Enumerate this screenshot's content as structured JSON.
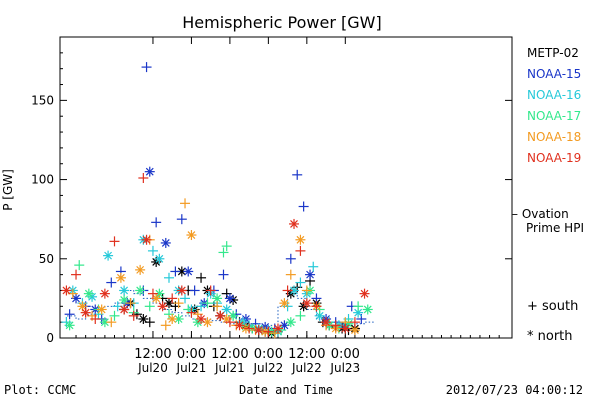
{
  "chart_data": {
    "type": "scatter",
    "title": "Hemispheric Power [GW]",
    "ylabel": "P [GW]",
    "xlabel": "Date and Time",
    "ylim": [
      0,
      190
    ],
    "yticks": [
      0,
      50,
      100,
      150
    ],
    "xlim_hours": [
      -17,
      124
    ],
    "xticks": [
      {
        "pos_hours": 12,
        "time": "12:00",
        "date": "Jul20"
      },
      {
        "pos_hours": 24,
        "time": "0:00",
        "date": "Jul21"
      },
      {
        "pos_hours": 36,
        "time": "12:00",
        "date": "Jul21"
      },
      {
        "pos_hours": 48,
        "time": "0:00",
        "date": "Jul22"
      },
      {
        "pos_hours": 60,
        "time": "12:00",
        "date": "Jul22"
      },
      {
        "pos_hours": 72,
        "time": "0:00",
        "date": "Jul23"
      }
    ],
    "plot_credit": "Plot: CCMC",
    "timestamp": "2012/07/23 04:00:12",
    "ovation_label": [
      "– Ovation",
      "Prime HPI"
    ],
    "ovation_color": "#1f5fbf",
    "marker_legend": [
      {
        "symbol": "+",
        "label": "south"
      },
      {
        "symbol": "*",
        "label": "north"
      }
    ],
    "series": [
      {
        "name": "METP-02",
        "color": "#000000",
        "points": [
          [
            3,
            18,
            "+"
          ],
          [
            5,
            22,
            "*"
          ],
          [
            7,
            15,
            "+"
          ],
          [
            9,
            12,
            "*"
          ],
          [
            11,
            10,
            "+"
          ],
          [
            13,
            48,
            "*"
          ],
          [
            15,
            25,
            "+"
          ],
          [
            17,
            22,
            "*"
          ],
          [
            19,
            20,
            "+"
          ],
          [
            21,
            42,
            "*"
          ],
          [
            23,
            30,
            "+"
          ],
          [
            25,
            18,
            "*"
          ],
          [
            27,
            38,
            "+"
          ],
          [
            29,
            30,
            "*"
          ],
          [
            31,
            20,
            "+"
          ],
          [
            33,
            14,
            "*"
          ],
          [
            35,
            28,
            "+"
          ],
          [
            37,
            24,
            "*"
          ],
          [
            39,
            10,
            "+"
          ],
          [
            41,
            8,
            "*"
          ],
          [
            43,
            6,
            "+"
          ],
          [
            45,
            5,
            "*"
          ],
          [
            47,
            4,
            "+"
          ],
          [
            49,
            3,
            "*"
          ],
          [
            51,
            4,
            "+"
          ],
          [
            55,
            28,
            "*"
          ],
          [
            57,
            32,
            "+"
          ],
          [
            59,
            20,
            "*"
          ],
          [
            61,
            36,
            "+"
          ],
          [
            63,
            22,
            "*"
          ],
          [
            65,
            10,
            "+"
          ],
          [
            67,
            8,
            "*"
          ],
          [
            69,
            7,
            "+"
          ],
          [
            71,
            6,
            "*"
          ],
          [
            73,
            5,
            "+"
          ],
          [
            75,
            6,
            "*"
          ]
        ]
      },
      {
        "name": "NOAA-15",
        "color": "#1a36c8",
        "points": [
          [
            -14,
            15,
            "+"
          ],
          [
            -12,
            25,
            "*"
          ],
          [
            -9,
            20,
            "+"
          ],
          [
            -6,
            18,
            "*"
          ],
          [
            -4,
            12,
            "+"
          ],
          [
            -1,
            35,
            "+"
          ],
          [
            2,
            42,
            "+"
          ],
          [
            4,
            22,
            "*"
          ],
          [
            9,
            30,
            "+"
          ],
          [
            10,
            171,
            "+"
          ],
          [
            11,
            105,
            "*"
          ],
          [
            13,
            73,
            "+"
          ],
          [
            16,
            60,
            "*"
          ],
          [
            19,
            42,
            "+"
          ],
          [
            21,
            75,
            "+"
          ],
          [
            23,
            42,
            "*"
          ],
          [
            25,
            30,
            "+"
          ],
          [
            28,
            22,
            "*"
          ],
          [
            31,
            30,
            "+"
          ],
          [
            34,
            40,
            "+"
          ],
          [
            36,
            25,
            "*"
          ],
          [
            38,
            15,
            "+"
          ],
          [
            41,
            12,
            "*"
          ],
          [
            44,
            9,
            "+"
          ],
          [
            47,
            7,
            "*"
          ],
          [
            50,
            6,
            "+"
          ],
          [
            53,
            8,
            "*"
          ],
          [
            55,
            50,
            "+"
          ],
          [
            57,
            103,
            "+"
          ],
          [
            59,
            83,
            "+"
          ],
          [
            61,
            40,
            "*"
          ],
          [
            63,
            25,
            "+"
          ],
          [
            66,
            12,
            "*"
          ],
          [
            69,
            10,
            "+"
          ],
          [
            72,
            8,
            "*"
          ],
          [
            74,
            20,
            "+"
          ],
          [
            77,
            12,
            "+"
          ]
        ]
      },
      {
        "name": "NOAA-16",
        "color": "#26c9d9",
        "points": [
          [
            -15,
            10,
            "+"
          ],
          [
            -13,
            30,
            "*"
          ],
          [
            -10,
            22,
            "+"
          ],
          [
            -7,
            26,
            "*"
          ],
          [
            -5,
            15,
            "+"
          ],
          [
            -2,
            52,
            "*"
          ],
          [
            1,
            20,
            "+"
          ],
          [
            3,
            30,
            "*"
          ],
          [
            6,
            22,
            "+"
          ],
          [
            9,
            62,
            "*"
          ],
          [
            12,
            55,
            "+"
          ],
          [
            14,
            50,
            "*"
          ],
          [
            17,
            38,
            "+"
          ],
          [
            20,
            30,
            "*"
          ],
          [
            22,
            25,
            "+"
          ],
          [
            24,
            18,
            "*"
          ],
          [
            27,
            20,
            "+"
          ],
          [
            30,
            28,
            "*"
          ],
          [
            32,
            22,
            "+"
          ],
          [
            35,
            18,
            "*"
          ],
          [
            37,
            14,
            "+"
          ],
          [
            40,
            10,
            "*"
          ],
          [
            42,
            8,
            "+"
          ],
          [
            45,
            6,
            "*"
          ],
          [
            48,
            5,
            "+"
          ],
          [
            51,
            4,
            "*"
          ],
          [
            54,
            20,
            "+"
          ],
          [
            56,
            30,
            "*"
          ],
          [
            58,
            35,
            "+"
          ],
          [
            60,
            28,
            "*"
          ],
          [
            62,
            45,
            "+"
          ],
          [
            64,
            14,
            "*"
          ],
          [
            67,
            10,
            "+"
          ],
          [
            70,
            8,
            "*"
          ],
          [
            73,
            12,
            "+"
          ],
          [
            76,
            16,
            "*"
          ]
        ]
      },
      {
        "name": "NOAA-17",
        "color": "#33e88c",
        "points": [
          [
            -14,
            8,
            "*"
          ],
          [
            -11,
            46,
            "+"
          ],
          [
            -8,
            28,
            "*"
          ],
          [
            -5,
            18,
            "+"
          ],
          [
            -3,
            10,
            "*"
          ],
          [
            0,
            14,
            "+"
          ],
          [
            3,
            24,
            "*"
          ],
          [
            6,
            16,
            "+"
          ],
          [
            8,
            30,
            "*"
          ],
          [
            11,
            20,
            "+"
          ],
          [
            14,
            28,
            "*"
          ],
          [
            17,
            15,
            "+"
          ],
          [
            20,
            12,
            "*"
          ],
          [
            23,
            18,
            "+"
          ],
          [
            26,
            10,
            "*"
          ],
          [
            29,
            22,
            "+"
          ],
          [
            32,
            25,
            "*"
          ],
          [
            35,
            58,
            "+"
          ],
          [
            34,
            54,
            "+"
          ],
          [
            37,
            14,
            "*"
          ],
          [
            40,
            8,
            "+"
          ],
          [
            43,
            6,
            "*"
          ],
          [
            46,
            5,
            "+"
          ],
          [
            49,
            4,
            "*"
          ],
          [
            52,
            5,
            "+"
          ],
          [
            55,
            10,
            "*"
          ],
          [
            58,
            14,
            "+"
          ],
          [
            61,
            30,
            "*"
          ],
          [
            64,
            18,
            "+"
          ],
          [
            67,
            8,
            "*"
          ],
          [
            70,
            6,
            "+"
          ],
          [
            73,
            9,
            "*"
          ],
          [
            76,
            20,
            "+"
          ],
          [
            79,
            18,
            "*"
          ]
        ]
      },
      {
        "name": "NOAA-18",
        "color": "#f39b22",
        "points": [
          [
            -13,
            28,
            "+"
          ],
          [
            -10,
            20,
            "*"
          ],
          [
            -7,
            14,
            "+"
          ],
          [
            -4,
            18,
            "*"
          ],
          [
            -1,
            10,
            "+"
          ],
          [
            2,
            38,
            "*"
          ],
          [
            5,
            22,
            "+"
          ],
          [
            8,
            43,
            "*"
          ],
          [
            11,
            62,
            "+"
          ],
          [
            13,
            25,
            "*"
          ],
          [
            16,
            8,
            "+"
          ],
          [
            18,
            12,
            "*"
          ],
          [
            20,
            22,
            "+"
          ],
          [
            22,
            85,
            "+"
          ],
          [
            24,
            65,
            "*"
          ],
          [
            26,
            15,
            "+"
          ],
          [
            29,
            10,
            "*"
          ],
          [
            32,
            20,
            "+"
          ],
          [
            35,
            12,
            "*"
          ],
          [
            38,
            8,
            "+"
          ],
          [
            41,
            6,
            "*"
          ],
          [
            44,
            5,
            "+"
          ],
          [
            47,
            4,
            "*"
          ],
          [
            50,
            3,
            "+"
          ],
          [
            53,
            22,
            "*"
          ],
          [
            55,
            40,
            "+"
          ],
          [
            58,
            62,
            "*"
          ],
          [
            60,
            30,
            "+"
          ],
          [
            63,
            20,
            "*"
          ],
          [
            66,
            8,
            "+"
          ],
          [
            69,
            6,
            "*"
          ],
          [
            72,
            10,
            "+"
          ],
          [
            75,
            5,
            "*"
          ]
        ]
      },
      {
        "name": "NOAA-19",
        "color": "#e0301e",
        "points": [
          [
            -15,
            30,
            "*"
          ],
          [
            -12,
            40,
            "+"
          ],
          [
            -9,
            16,
            "*"
          ],
          [
            -6,
            12,
            "+"
          ],
          [
            -3,
            28,
            "*"
          ],
          [
            0,
            61,
            "+"
          ],
          [
            3,
            18,
            "*"
          ],
          [
            6,
            14,
            "+"
          ],
          [
            9,
            101,
            "+"
          ],
          [
            10,
            62,
            "*"
          ],
          [
            12,
            28,
            "+"
          ],
          [
            15,
            20,
            "*"
          ],
          [
            18,
            25,
            "+"
          ],
          [
            21,
            30,
            "*"
          ],
          [
            24,
            16,
            "+"
          ],
          [
            27,
            12,
            "*"
          ],
          [
            30,
            30,
            "+"
          ],
          [
            33,
            14,
            "*"
          ],
          [
            36,
            10,
            "+"
          ],
          [
            39,
            8,
            "*"
          ],
          [
            42,
            6,
            "+"
          ],
          [
            45,
            5,
            "*"
          ],
          [
            48,
            4,
            "+"
          ],
          [
            51,
            6,
            "*"
          ],
          [
            54,
            30,
            "+"
          ],
          [
            56,
            72,
            "*"
          ],
          [
            58,
            55,
            "+"
          ],
          [
            60,
            22,
            "*"
          ],
          [
            63,
            20,
            "+"
          ],
          [
            66,
            10,
            "*"
          ],
          [
            69,
            8,
            "+"
          ],
          [
            72,
            6,
            "*"
          ],
          [
            75,
            10,
            "+"
          ],
          [
            78,
            28,
            "*"
          ]
        ]
      }
    ],
    "ovation_points": [
      [
        -15,
        10
      ],
      [
        -12,
        14
      ],
      [
        -9,
        12
      ],
      [
        -6,
        15
      ],
      [
        -3,
        18
      ],
      [
        0,
        20
      ],
      [
        3,
        22
      ],
      [
        6,
        30
      ],
      [
        9,
        28
      ],
      [
        12,
        25
      ],
      [
        15,
        22
      ],
      [
        18,
        18
      ],
      [
        21,
        16
      ],
      [
        24,
        14
      ],
      [
        27,
        12
      ],
      [
        30,
        12
      ],
      [
        33,
        11
      ],
      [
        36,
        10
      ],
      [
        39,
        9
      ],
      [
        42,
        8
      ],
      [
        45,
        7
      ],
      [
        48,
        6
      ],
      [
        51,
        8
      ],
      [
        54,
        20
      ],
      [
        57,
        28
      ],
      [
        60,
        25
      ],
      [
        63,
        18
      ],
      [
        66,
        12
      ],
      [
        69,
        10
      ],
      [
        72,
        9
      ],
      [
        75,
        8
      ],
      [
        78,
        9
      ],
      [
        81,
        10
      ]
    ]
  }
}
